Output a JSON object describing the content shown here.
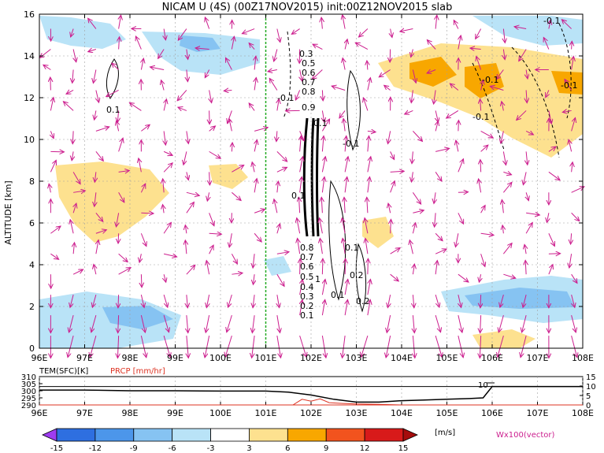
{
  "chart_data": [
    {
      "type": "heatmap",
      "title": "NICAM U (4S) (00Z17NOV2015) init:00Z12NOV2015 slab",
      "ylabel": "ALTITUDE [km]",
      "x_ticks": [
        "96E",
        "97E",
        "98E",
        "99E",
        "100E",
        "101E",
        "102E",
        "103E",
        "104E",
        "105E",
        "106E",
        "107E",
        "108E"
      ],
      "xlim": [
        96,
        108
      ],
      "y_ticks": [
        "0",
        "2",
        "4",
        "6",
        "8",
        "10",
        "12",
        "14",
        "16"
      ],
      "ylim": [
        0,
        16
      ],
      "grid": true,
      "marker_line": {
        "x": 101,
        "color": "#22aa22"
      },
      "contour_labels": [
        "-0.1",
        "-0.1",
        "-0.1",
        "-0.1",
        "-0.1",
        "0.1",
        "0.1",
        "0.1",
        "0.1",
        "0.3",
        "0.5",
        "0.6",
        "0.7",
        "0.8",
        "0.9",
        "0.8",
        "0.7",
        "0.6",
        "0.5",
        "0.4",
        "0.3",
        "0.2",
        "0.1",
        "1",
        "0.2",
        "0.2",
        "0.1",
        "-0.1"
      ],
      "shading": {
        "colors": [
          "#9e3cf0",
          "#2e6fe0",
          "#4c96ea",
          "#86c3f2",
          "#b9e3f7",
          "#ffffff",
          "#fde18f",
          "#f8a700",
          "#f2531e",
          "#d81a1a",
          "#a50c0c"
        ],
        "levels": [
          "-15",
          "-12",
          "-9",
          "-6",
          "-3",
          "3",
          "6",
          "9",
          "12",
          "15"
        ],
        "unit": "[m/s]"
      },
      "vector_label": "Wx100(vector)",
      "vector_color": "#cc1e8e"
    },
    {
      "type": "line",
      "title": "",
      "series": [
        {
          "name": "TEM(SFC)[K]",
          "color": "#000000",
          "x": [
            96,
            97,
            98,
            99,
            100,
            101,
            101.5,
            102,
            102.5,
            103,
            103.5,
            104,
            104.5,
            105,
            105.5,
            105.8,
            106,
            106.2,
            107,
            108
          ],
          "values": [
            300.5,
            300.5,
            300,
            300,
            299.8,
            299.8,
            299,
            297,
            294,
            292,
            292,
            293,
            293.5,
            294,
            294.5,
            295,
            303,
            303,
            303,
            303
          ]
        },
        {
          "name": "PRCP [mm/hr]",
          "color": "#dd3322",
          "x": [
            96,
            101,
            101.6,
            101.8,
            102,
            102.2,
            102.4,
            102.7,
            103,
            103.5,
            104,
            108
          ],
          "values": [
            0,
            0,
            0,
            3,
            2,
            3.2,
            1.2,
            0.8,
            0.5,
            0.3,
            0,
            0
          ]
        }
      ],
      "left_ticks": [
        "310",
        "305",
        "300",
        "295",
        "290"
      ],
      "left_range": [
        290,
        310
      ],
      "right_ticks": [
        "15",
        "10",
        "5",
        "0"
      ],
      "right_range": [
        0,
        15
      ],
      "x_ticks": [
        "96E",
        "97E",
        "98E",
        "99E",
        "100E",
        "101E",
        "102E",
        "103E",
        "104E",
        "105E",
        "106E",
        "107E",
        "108E"
      ],
      "annotation": "10"
    }
  ]
}
